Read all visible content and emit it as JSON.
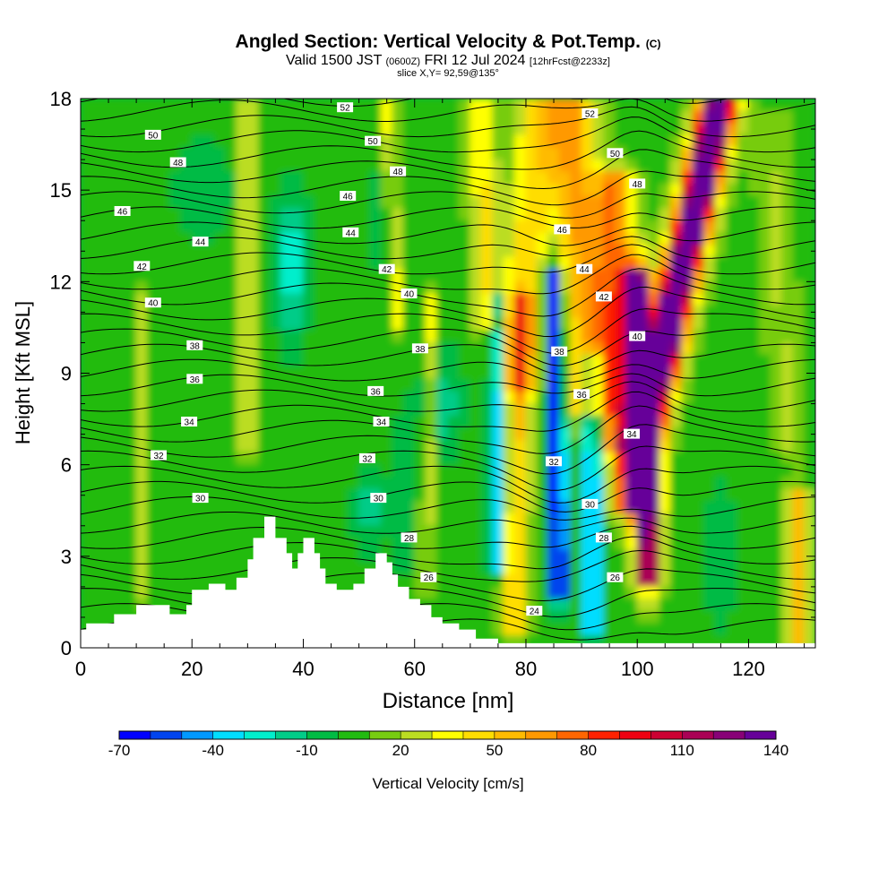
{
  "title": {
    "main": "Angled Section: Vertical Velocity & Pot.Temp.",
    "copyright": "(C)",
    "valid_prefix": "Valid 1500 JST",
    "valid_utc": "(0600Z)",
    "valid_date": "FRI 12 Jul 2024",
    "forecast": "[12hrFcst@2233z]",
    "slice": "slice X,Y= 92,59@135°"
  },
  "chart_data": {
    "type": "heatmap",
    "xlabel": "Distance [nm]",
    "ylabel": "Height [Kft MSL]",
    "xlim": [
      0,
      132
    ],
    "ylim": [
      0,
      18
    ],
    "x_ticks": [
      0,
      20,
      40,
      60,
      80,
      100,
      120
    ],
    "y_ticks": [
      0,
      3,
      6,
      9,
      12,
      15,
      18
    ],
    "colorbar": {
      "label": "Vertical Velocity [cm/s]",
      "tick_labels": [
        -70,
        -40,
        -10,
        20,
        50,
        80,
        110,
        140
      ],
      "colors": [
        "#0000ff",
        "#0044ee",
        "#0099ff",
        "#00ddff",
        "#00eecc",
        "#00cc88",
        "#00bb44",
        "#22bb11",
        "#77cc11",
        "#bbdd22",
        "#ffff00",
        "#ffdd00",
        "#ffbb00",
        "#ff9900",
        "#ff6600",
        "#ff2200",
        "#ee0011",
        "#cc0033",
        "#aa0055",
        "#880077",
        "#660099"
      ]
    },
    "contour_labels": [
      {
        "x": 13,
        "y": 16.8,
        "text": "50"
      },
      {
        "x": 47.5,
        "y": 17.7,
        "text": "52"
      },
      {
        "x": 52.5,
        "y": 16.6,
        "text": "50"
      },
      {
        "x": 91.5,
        "y": 17.5,
        "text": "52"
      },
      {
        "x": 96,
        "y": 16.2,
        "text": "50"
      },
      {
        "x": 17.5,
        "y": 15.9,
        "text": "48"
      },
      {
        "x": 57,
        "y": 15.6,
        "text": "48"
      },
      {
        "x": 100,
        "y": 15.2,
        "text": "48"
      },
      {
        "x": 7.5,
        "y": 14.3,
        "text": "46"
      },
      {
        "x": 48,
        "y": 14.8,
        "text": "46"
      },
      {
        "x": 86.5,
        "y": 13.7,
        "text": "46"
      },
      {
        "x": 21.5,
        "y": 13.3,
        "text": "44"
      },
      {
        "x": 48.5,
        "y": 13.6,
        "text": "44"
      },
      {
        "x": 90.5,
        "y": 12.4,
        "text": "44"
      },
      {
        "x": 11,
        "y": 12.5,
        "text": "42"
      },
      {
        "x": 55,
        "y": 12.4,
        "text": "42"
      },
      {
        "x": 94,
        "y": 11.5,
        "text": "42"
      },
      {
        "x": 13,
        "y": 11.3,
        "text": "40"
      },
      {
        "x": 59,
        "y": 11.6,
        "text": "40"
      },
      {
        "x": 100,
        "y": 10.2,
        "text": "40"
      },
      {
        "x": 20.5,
        "y": 9.9,
        "text": "38"
      },
      {
        "x": 61,
        "y": 9.8,
        "text": "38"
      },
      {
        "x": 86,
        "y": 9.7,
        "text": "38"
      },
      {
        "x": 20.5,
        "y": 8.8,
        "text": "36"
      },
      {
        "x": 53,
        "y": 8.4,
        "text": "36"
      },
      {
        "x": 90,
        "y": 8.3,
        "text": "36"
      },
      {
        "x": 19.5,
        "y": 7.4,
        "text": "34"
      },
      {
        "x": 54,
        "y": 7.4,
        "text": "34"
      },
      {
        "x": 99,
        "y": 7.0,
        "text": "34"
      },
      {
        "x": 14,
        "y": 6.3,
        "text": "32"
      },
      {
        "x": 51.5,
        "y": 6.2,
        "text": "32"
      },
      {
        "x": 85,
        "y": 6.1,
        "text": "32"
      },
      {
        "x": 21.5,
        "y": 4.9,
        "text": "30"
      },
      {
        "x": 53.5,
        "y": 4.9,
        "text": "30"
      },
      {
        "x": 91.5,
        "y": 4.7,
        "text": "30"
      },
      {
        "x": 59,
        "y": 3.6,
        "text": "28"
      },
      {
        "x": 94,
        "y": 3.6,
        "text": "28"
      },
      {
        "x": 62.5,
        "y": 2.3,
        "text": "26"
      },
      {
        "x": 96,
        "y": 2.3,
        "text": "26"
      },
      {
        "x": 81.5,
        "y": 1.2,
        "text": "24"
      }
    ]
  }
}
